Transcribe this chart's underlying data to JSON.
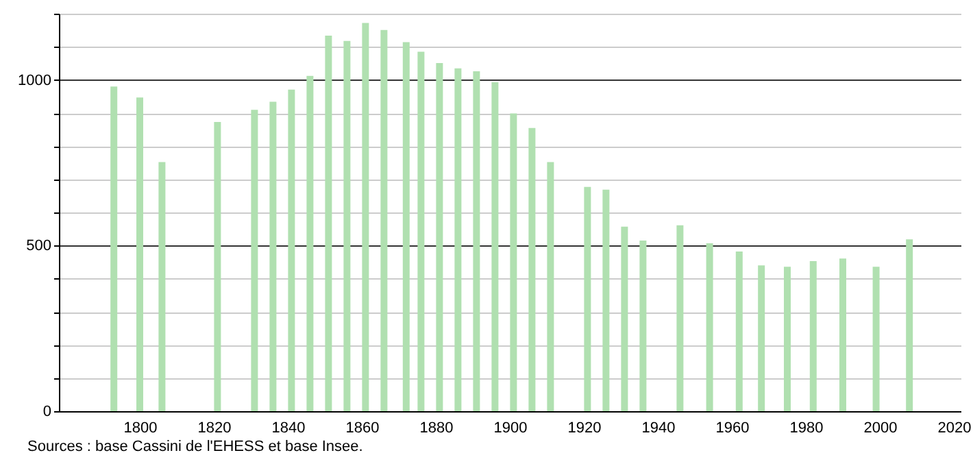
{
  "chart_data": {
    "type": "bar",
    "x": [
      1793,
      1800,
      1806,
      1821,
      1831,
      1836,
      1841,
      1846,
      1851,
      1856,
      1861,
      1866,
      1872,
      1876,
      1881,
      1886,
      1891,
      1896,
      1901,
      1906,
      1911,
      1921,
      1926,
      1931,
      1936,
      1946,
      1954,
      1962,
      1968,
      1975,
      1982,
      1990,
      1999,
      2008
    ],
    "values": [
      980,
      947,
      752,
      873,
      910,
      934,
      971,
      1012,
      1134,
      1118,
      1172,
      1151,
      1114,
      1085,
      1051,
      1035,
      1026,
      993,
      899,
      855,
      752,
      677,
      669,
      557,
      515,
      561,
      507,
      482,
      440,
      436,
      453,
      461,
      436,
      519
    ],
    "color": "#b0e0b0",
    "xlim": [
      1780,
      2020
    ],
    "xticks": [
      1800,
      1820,
      1840,
      1860,
      1880,
      1900,
      1920,
      1940,
      1960,
      1980,
      2000,
      2020
    ],
    "ylim": [
      0,
      1200
    ],
    "yticks": [
      0,
      {
        "value": 100,
        "label": null
      },
      {
        "value": 200,
        "label": null
      },
      {
        "value": 300,
        "label": null
      },
      {
        "value": 400,
        "label": null
      },
      500,
      {
        "value": 600,
        "label": null
      },
      {
        "value": 700,
        "label": null
      },
      {
        "value": 800,
        "label": null
      },
      {
        "value": 900,
        "label": null
      },
      1000,
      {
        "value": 1100,
        "label": null
      },
      {
        "value": 1200,
        "label": null
      }
    ],
    "grid": "y",
    "annotations": [
      "Sources : base Cassini de l'EHESS et base Insee."
    ]
  }
}
